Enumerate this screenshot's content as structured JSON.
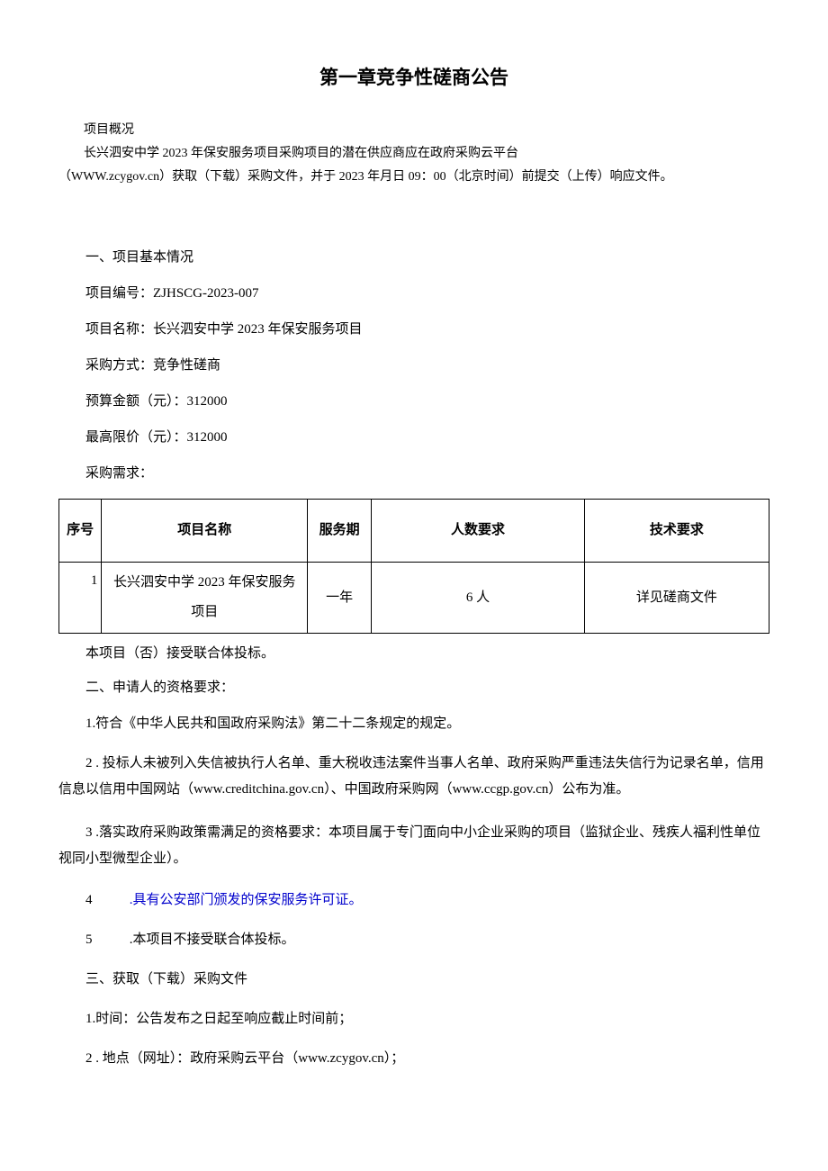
{
  "title": "第一章竞争性磋商公告",
  "overview": {
    "label": "项目概况",
    "line1": "长兴泗安中学 2023 年保安服务项目采购项目的潜在供应商应在政府采购云平台",
    "line2": "（WWW.zcygov.cn）获取（下载）采购文件，并于 2023 年月日 09：00（北京时间）前提交（上传）响应文件。"
  },
  "section1": {
    "heading": "一、项目基本情况",
    "project_number": "项目编号：ZJHSCG-2023-007",
    "project_name": "项目名称：长兴泗安中学 2023 年保安服务项目",
    "procurement_method": "采购方式：竞争性磋商",
    "budget": "预算金额（元）：312000",
    "max_price": "最高限价（元）：312000",
    "requirements_label": "采购需求："
  },
  "table": {
    "headers": {
      "seq": "序号",
      "name": "项目名称",
      "period": "服务期",
      "count": "人数要求",
      "tech": "技术要求"
    },
    "rows": [
      {
        "seq": "1",
        "name": "长兴泗安中学 2023 年保安服务项目",
        "period": "一年",
        "count": "6 人",
        "tech": "详见磋商文件"
      }
    ]
  },
  "consortium_note": "本项目（否）接受联合体投标。",
  "section2": {
    "heading": "二、申请人的资格要求：",
    "item1": "1.符合《中华人民共和国政府采购法》第二十二条规定的规定。",
    "item2": "2 . 投标人未被列入失信被执行人名单、重大税收违法案件当事人名单、政府采购严重违法失信行为记录名单，信用信息以信用中国网站（www.creditchina.gov.cn）、中国政府采购网（www.ccgp.gov.cn）公布为准。",
    "item3": "3 .落实政府采购政策需满足的资格要求：本项目属于专门面向中小企业采购的项目（监狱企业、残疾人福利性单位视同小型微型企业）。",
    "item4_num": "4",
    "item4_text": ".具有公安部门颁发的保安服务许可证。",
    "item5_num": "5",
    "item5_text": ".本项目不接受联合体投标。"
  },
  "section3": {
    "heading": "三、获取（下载）采购文件",
    "item1": "1.时间：公告发布之日起至响应截止时间前；",
    "item2": "2 . 地点（网址）：政府采购云平台（www.zcygov.cn）；"
  }
}
